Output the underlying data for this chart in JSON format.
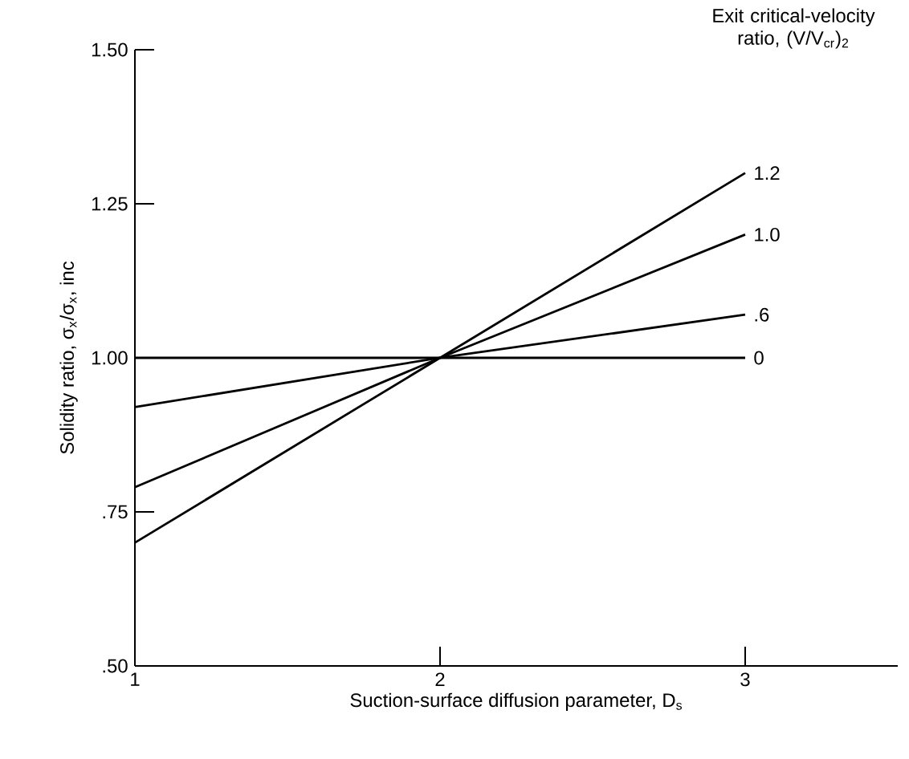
{
  "chart_data": {
    "type": "line",
    "xlabel": "Suction-surface diffusion parameter, D$_{s}$",
    "ylabel": "Solidity ratio, σ$_{x}$/σ$_{x}$, inc",
    "legend_title": "Exit critical-velocity ratio, (V/V$_{cr}$)$_{2}$",
    "x": [
      1,
      2,
      3
    ],
    "xlim": [
      1,
      3.5
    ],
    "xticks": [
      1,
      2,
      3
    ],
    "ylim": [
      0.5,
      1.5
    ],
    "yticks": [
      {
        "value": 0.5,
        "label": ".50"
      },
      {
        "value": 0.75,
        "label": ".75"
      },
      {
        "value": 1.0,
        "label": "1.00"
      },
      {
        "value": 1.25,
        "label": "1.25"
      },
      {
        "value": 1.5,
        "label": "1.50"
      }
    ],
    "series": [
      {
        "name": "1.2",
        "color": "#000000",
        "values": [
          0.7,
          1.0,
          1.3
        ]
      },
      {
        "name": "1.0",
        "color": "#000000",
        "values": [
          0.79,
          1.0,
          1.2
        ]
      },
      {
        "name": ".6",
        "color": "#000000",
        "values": [
          0.92,
          1.0,
          1.07
        ]
      },
      {
        "name": "0",
        "color": "#000000",
        "values": [
          1.0,
          1.0,
          1.0
        ]
      }
    ]
  }
}
